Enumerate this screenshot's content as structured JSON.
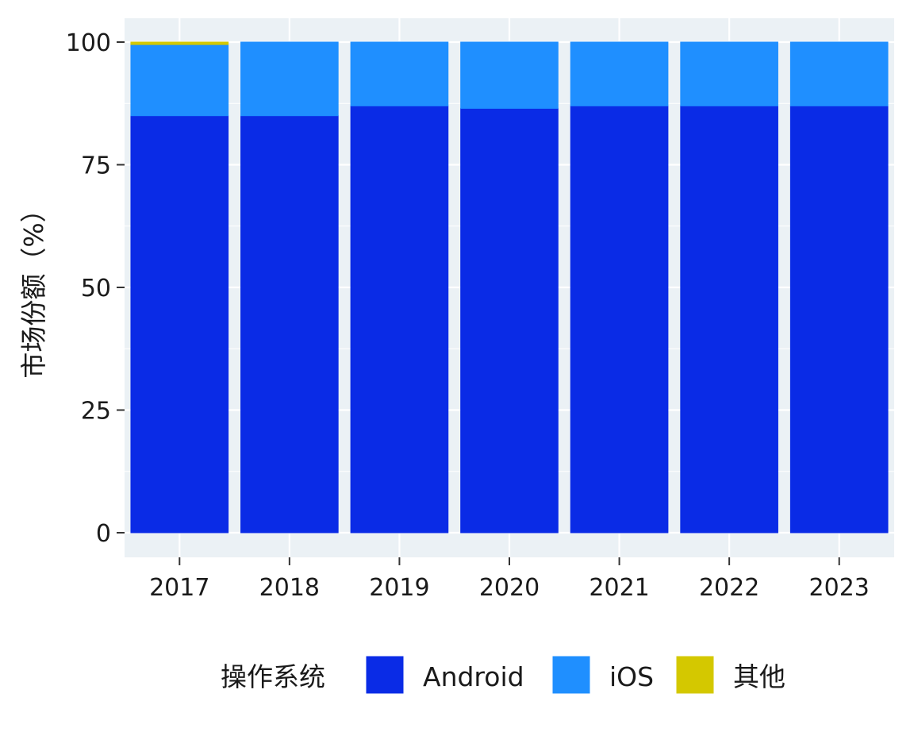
{
  "chart_data": {
    "type": "bar",
    "stacked": true,
    "categories": [
      "2017",
      "2018",
      "2019",
      "2020",
      "2021",
      "2022",
      "2023"
    ],
    "series": [
      {
        "name": "Android",
        "color": "#0a2be6",
        "values": [
          85.0,
          85.0,
          87.0,
          86.5,
          87.0,
          87.0,
          87.0
        ]
      },
      {
        "name": "iOS",
        "color": "#1f8fff",
        "values": [
          14.5,
          15.0,
          13.0,
          13.5,
          13.0,
          13.0,
          13.0
        ]
      },
      {
        "name": "其他",
        "color": "#d4c800",
        "values": [
          0.5,
          0,
          0,
          0,
          0,
          0,
          0
        ]
      }
    ],
    "ylabel": "市场份额（%）",
    "xlabel": "",
    "ylim": [
      0,
      100
    ],
    "yticks": [
      "0",
      "25",
      "50",
      "75",
      "100"
    ],
    "grid": true,
    "legend": {
      "title": "操作系统",
      "placement": "bottom"
    },
    "colors": {
      "panel_background": "#ebf1f5",
      "gridline": "#ffffff"
    }
  }
}
